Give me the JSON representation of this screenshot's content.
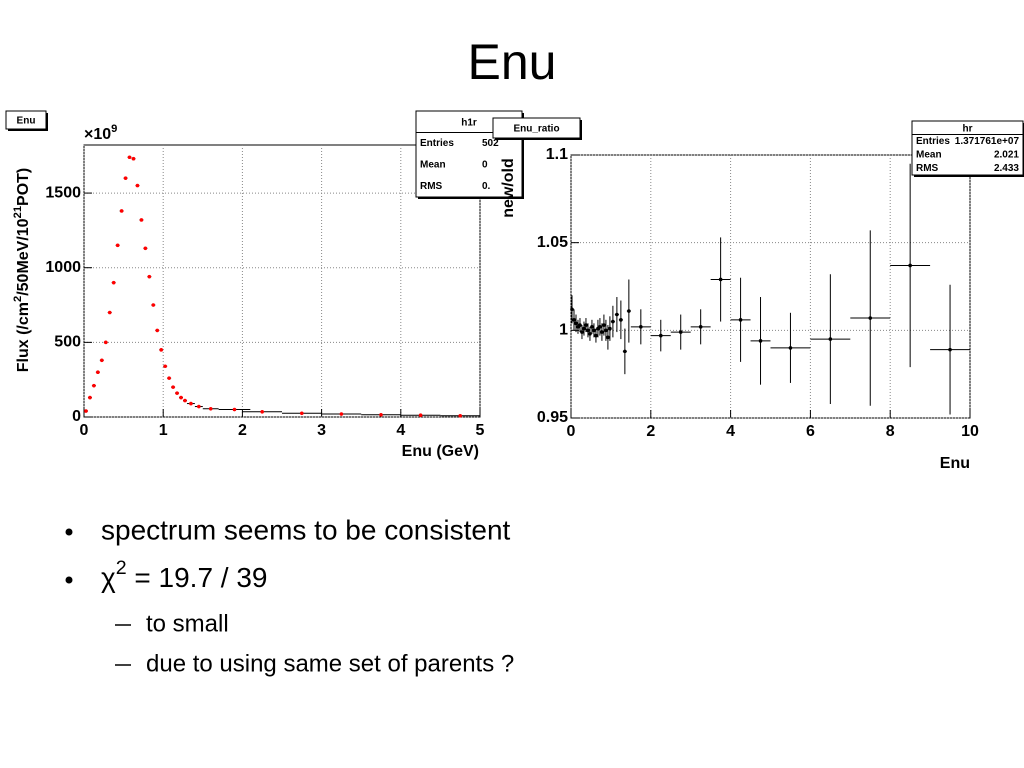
{
  "slide": {
    "title": "Enu",
    "bullets": [
      {
        "text": "spectrum seems to be consistent"
      },
      {
        "parts": [
          "χ",
          "2",
          " = 19.7 / 39"
        ]
      }
    ],
    "sub_bullets": [
      "to small",
      "due to using same set of parents ?"
    ]
  },
  "chart_data": [
    {
      "type": "scatter",
      "label": "Enu",
      "stats": {
        "title": "h1r",
        "rows": [
          [
            "Entries",
            "502"
          ],
          [
            "Mean",
            "0"
          ],
          [
            "RMS",
            "0."
          ]
        ]
      },
      "multiplier": [
        "×10",
        "9"
      ],
      "xlabel": "Enu (GeV)",
      "ylabel": [
        "Flux (/cm",
        "2",
        "/50MeV/10",
        "21",
        "POT)"
      ],
      "x": [
        0.025,
        0.075,
        0.125,
        0.175,
        0.225,
        0.275,
        0.325,
        0.375,
        0.425,
        0.475,
        0.525,
        0.575,
        0.625,
        0.675,
        0.725,
        0.775,
        0.825,
        0.875,
        0.925,
        0.975,
        1.025,
        1.075,
        1.125,
        1.175,
        1.225,
        1.275,
        1.35,
        1.45,
        1.6,
        1.9,
        2.25,
        2.75,
        3.25,
        3.75,
        4.25,
        4.75
      ],
      "values": [
        40,
        130,
        210,
        300,
        380,
        500,
        700,
        900,
        1150,
        1380,
        1600,
        1740,
        1730,
        1550,
        1320,
        1130,
        940,
        750,
        580,
        450,
        340,
        260,
        200,
        160,
        130,
        110,
        90,
        70,
        55,
        50,
        35,
        25,
        20,
        15,
        12,
        8
      ],
      "xerr": [
        0.025,
        0.025,
        0.025,
        0.025,
        0.025,
        0.025,
        0.025,
        0.025,
        0.025,
        0.025,
        0.025,
        0.025,
        0.025,
        0.025,
        0.025,
        0.025,
        0.025,
        0.025,
        0.025,
        0.025,
        0.025,
        0.025,
        0.025,
        0.025,
        0.025,
        0.025,
        0.05,
        0.05,
        0.1,
        0.2,
        0.25,
        0.25,
        0.25,
        0.25,
        0.25,
        0.25
      ],
      "color": "#ff0000",
      "xlim": [
        0,
        5
      ],
      "ylim": [
        0,
        1822
      ],
      "xticks": [
        0,
        1,
        2,
        3,
        4,
        5
      ],
      "yticks": [
        0,
        500,
        1000,
        1500
      ],
      "grid": true
    },
    {
      "type": "scatter",
      "label": "Enu_ratio",
      "stats": {
        "title": "hr",
        "rows": [
          [
            "Entries",
            "1.371761e+07"
          ],
          [
            "Mean",
            "2.021"
          ],
          [
            "RMS",
            "2.433"
          ]
        ]
      },
      "xlabel": "Enu",
      "ylabel": [
        "new/old"
      ],
      "x": [
        0.025,
        0.075,
        0.125,
        0.175,
        0.225,
        0.275,
        0.325,
        0.375,
        0.425,
        0.475,
        0.525,
        0.575,
        0.625,
        0.675,
        0.725,
        0.775,
        0.825,
        0.875,
        0.925,
        0.975,
        1.05,
        1.15,
        1.25,
        1.35,
        1.45,
        1.75,
        2.25,
        2.75,
        3.25,
        3.75,
        4.25,
        4.75,
        5.5,
        6.5,
        7.5,
        8.5,
        9.5
      ],
      "values": [
        1.012,
        1.006,
        1.004,
        1.002,
        1.003,
        0.999,
        1.001,
        1.003,
        1.0,
        0.998,
        1.002,
        1.0,
        0.997,
        1.001,
        1.002,
        0.999,
        1.003,
        1.0,
        0.996,
        1.001,
        1.005,
        1.009,
        1.006,
        0.988,
        1.011,
        1.002,
        0.997,
        0.999,
        1.002,
        1.029,
        1.006,
        0.994,
        0.99,
        0.995,
        1.007,
        1.037,
        0.989
      ],
      "xerr": [
        0.025,
        0.025,
        0.025,
        0.025,
        0.025,
        0.025,
        0.025,
        0.025,
        0.025,
        0.025,
        0.025,
        0.025,
        0.025,
        0.025,
        0.025,
        0.025,
        0.025,
        0.025,
        0.025,
        0.025,
        0.05,
        0.05,
        0.05,
        0.05,
        0.05,
        0.25,
        0.25,
        0.25,
        0.25,
        0.25,
        0.25,
        0.25,
        0.5,
        0.5,
        0.5,
        0.5,
        0.5
      ],
      "yerr": [
        0.008,
        0.006,
        0.005,
        0.004,
        0.004,
        0.004,
        0.004,
        0.004,
        0.004,
        0.004,
        0.004,
        0.004,
        0.004,
        0.005,
        0.005,
        0.005,
        0.006,
        0.006,
        0.007,
        0.007,
        0.009,
        0.01,
        0.011,
        0.013,
        0.018,
        0.01,
        0.009,
        0.01,
        0.01,
        0.024,
        0.024,
        0.025,
        0.02,
        0.037,
        0.05,
        0.058,
        0.037
      ],
      "color": "#000000",
      "xlim": [
        0,
        10
      ],
      "ylim": [
        0.95,
        1.1
      ],
      "xticks": [
        0,
        2,
        4,
        6,
        8,
        10
      ],
      "yticks": [
        0.95,
        1,
        1.05,
        1.1
      ],
      "grid": true
    }
  ]
}
